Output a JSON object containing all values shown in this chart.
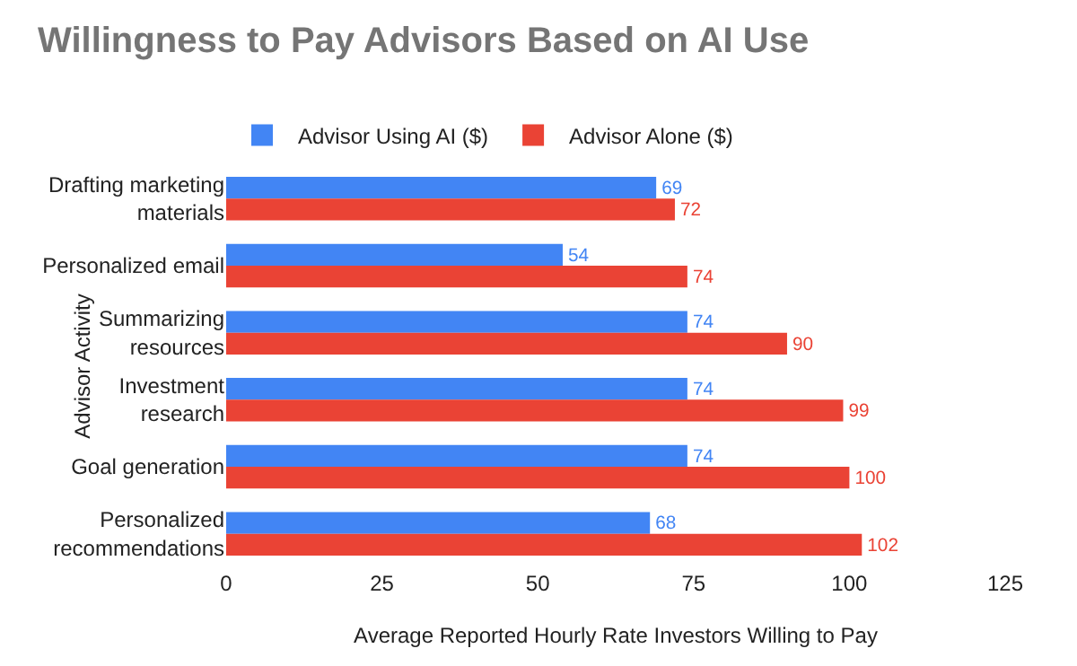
{
  "chart_data": {
    "type": "bar",
    "orientation": "horizontal",
    "title": "Willingness to Pay Advisors Based on AI Use",
    "xlabel": "Average Reported Hourly Rate Investors Willing to Pay",
    "ylabel": "Advisor Activity",
    "categories": [
      "Drafting marketing materials",
      "Personalized email",
      "Summarizing resources",
      "Investment research",
      "Goal generation",
      "Personalized recommendations"
    ],
    "series": [
      {
        "name": "Advisor Using AI ($)",
        "color": "#4285f4",
        "values": [
          69,
          54,
          74,
          74,
          74,
          68
        ]
      },
      {
        "name": "Advisor Alone ($)",
        "color": "#ea4335",
        "values": [
          72,
          74,
          90,
          99,
          100,
          102
        ]
      }
    ],
    "xlim": [
      0,
      125
    ],
    "xticks": [
      0,
      25,
      50,
      75,
      100,
      125
    ],
    "grid": false,
    "legend": "top",
    "data_labels": true
  }
}
